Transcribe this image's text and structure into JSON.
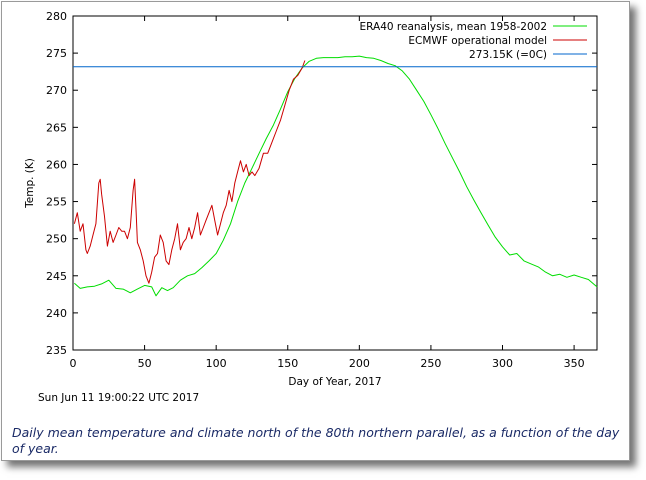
{
  "chart_data": {
    "type": "line",
    "xlabel": "Day of Year, 2017",
    "ylabel": "Temp. (K)",
    "xlim": [
      0,
      366
    ],
    "ylim": [
      235,
      280
    ],
    "xticks": [
      0,
      50,
      100,
      150,
      200,
      250,
      300,
      350
    ],
    "yticks": [
      235,
      240,
      245,
      250,
      255,
      260,
      265,
      270,
      275,
      280
    ],
    "grid": false,
    "legend_position": "top-right",
    "timestamp": "Sun Jun 11 19:00:22 UTC 2017",
    "series": [
      {
        "name": "ERA40 reanalysis, mean 1958-2002",
        "color": "#00dd00",
        "x": [
          1,
          5,
          10,
          15,
          20,
          25,
          30,
          35,
          40,
          45,
          50,
          55,
          58,
          62,
          66,
          70,
          75,
          80,
          85,
          90,
          95,
          100,
          105,
          110,
          115,
          120,
          125,
          130,
          135,
          140,
          145,
          150,
          155,
          160,
          165,
          170,
          175,
          180,
          185,
          190,
          195,
          200,
          205,
          210,
          215,
          220,
          225,
          230,
          235,
          240,
          245,
          250,
          255,
          260,
          265,
          270,
          275,
          280,
          285,
          290,
          295,
          300,
          305,
          310,
          315,
          320,
          325,
          330,
          335,
          340,
          345,
          350,
          355,
          360,
          366
        ],
        "y": [
          244.0,
          243.3,
          243.5,
          243.6,
          243.9,
          244.4,
          243.3,
          243.2,
          242.7,
          243.2,
          243.7,
          243.5,
          242.3,
          243.4,
          243.0,
          243.4,
          244.4,
          245.0,
          245.3,
          246.1,
          247.0,
          248.0,
          249.8,
          252.0,
          255.0,
          257.5,
          259.5,
          261.5,
          263.5,
          265.3,
          267.5,
          269.8,
          271.6,
          273.0,
          273.9,
          274.3,
          274.4,
          274.4,
          274.4,
          274.5,
          274.5,
          274.6,
          274.4,
          274.3,
          274.0,
          273.6,
          273.3,
          272.6,
          271.5,
          270.0,
          268.5,
          266.7,
          264.8,
          262.8,
          260.9,
          259.0,
          257.0,
          255.2,
          253.5,
          251.8,
          250.2,
          248.9,
          247.8,
          248.0,
          247.0,
          246.6,
          246.2,
          245.5,
          245.0,
          245.2,
          244.8,
          245.1,
          244.8,
          244.5,
          243.5
        ]
      },
      {
        "name": "ECMWF operational model",
        "color": "#cc0000",
        "x": [
          1,
          3,
          5,
          7,
          9,
          10,
          12,
          14,
          16,
          18,
          19,
          20,
          22,
          24,
          26,
          28,
          30,
          32,
          34,
          36,
          38,
          40,
          42,
          43,
          44,
          45,
          47,
          49,
          51,
          53,
          55,
          57,
          59,
          61,
          63,
          65,
          67,
          69,
          71,
          73,
          75,
          77,
          79,
          81,
          83,
          85,
          87,
          89,
          91,
          93,
          95,
          97,
          99,
          101,
          103,
          105,
          107,
          109,
          111,
          113,
          115,
          117,
          119,
          121,
          123,
          125,
          127,
          130,
          133,
          136,
          139,
          142,
          145,
          148,
          151,
          154,
          157,
          160,
          162
        ],
        "y": [
          252.0,
          253.5,
          251.0,
          252.0,
          248.5,
          248.0,
          249.0,
          250.5,
          252.0,
          257.5,
          258.0,
          256.0,
          253.0,
          249.0,
          251.0,
          249.5,
          250.5,
          251.5,
          251.0,
          251.0,
          250.0,
          251.5,
          256.5,
          258.0,
          254.0,
          249.5,
          248.5,
          247.0,
          245.0,
          244.0,
          245.5,
          247.5,
          248.0,
          250.5,
          249.5,
          247.0,
          246.5,
          248.5,
          250.0,
          252.0,
          248.5,
          249.5,
          250.0,
          251.5,
          250.0,
          251.5,
          253.5,
          250.5,
          251.5,
          252.5,
          253.5,
          254.5,
          252.5,
          250.5,
          252.0,
          253.5,
          254.5,
          256.5,
          255.0,
          257.5,
          259.0,
          260.5,
          259.0,
          260.0,
          258.5,
          259.0,
          258.5,
          259.5,
          261.5,
          261.5,
          263.0,
          264.5,
          266.0,
          268.0,
          270.0,
          271.5,
          272.0,
          273.0,
          274.0
        ]
      },
      {
        "name": "273.15K (=0C)",
        "color": "#0066cc",
        "x": [
          0,
          366
        ],
        "y": [
          273.15,
          273.15
        ]
      }
    ]
  },
  "caption": "Daily mean temperature and climate north of the 80th northern parallel, as a function of the day of year."
}
